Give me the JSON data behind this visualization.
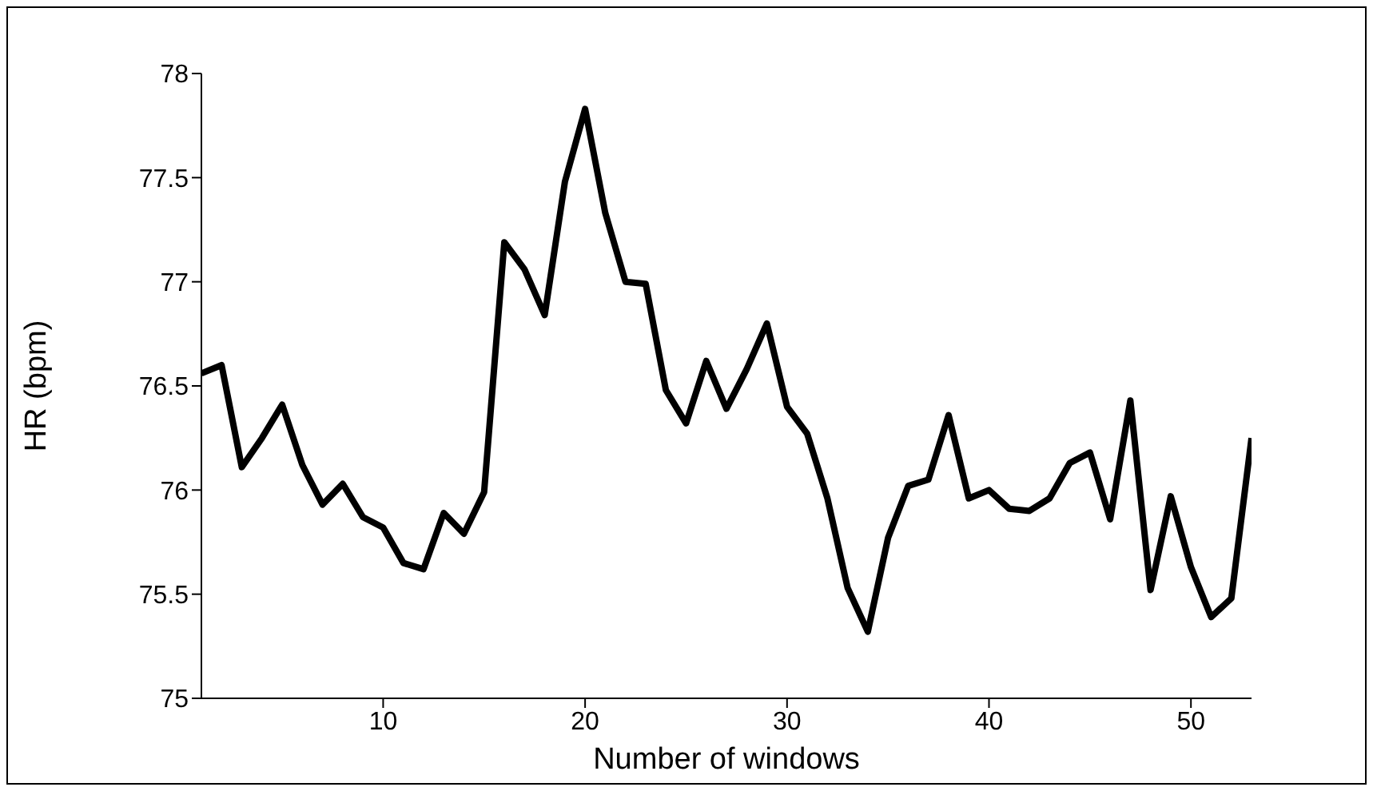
{
  "chart_data": {
    "type": "line",
    "xlabel": "Number of windows",
    "ylabel": "HR (bpm)",
    "x": [
      1,
      2,
      3,
      4,
      5,
      6,
      7,
      8,
      9,
      10,
      11,
      12,
      13,
      14,
      15,
      16,
      17,
      18,
      19,
      20,
      21,
      22,
      23,
      24,
      25,
      26,
      27,
      28,
      29,
      30,
      31,
      32,
      33,
      34,
      35,
      36,
      37,
      38,
      39,
      40,
      41,
      42,
      43,
      44,
      45,
      46,
      47,
      48,
      49,
      50,
      51,
      52,
      53
    ],
    "series": [
      {
        "color": "#000000",
        "values": [
          76.56,
          76.6,
          76.11,
          76.25,
          76.41,
          76.12,
          75.93,
          76.03,
          75.87,
          75.82,
          75.65,
          75.62,
          75.89,
          75.79,
          75.99,
          77.19,
          77.06,
          76.84,
          77.48,
          77.83,
          77.33,
          77.0,
          76.99,
          76.48,
          76.32,
          76.62,
          76.39,
          76.58,
          76.8,
          76.4,
          76.27,
          75.96,
          75.53,
          75.32,
          75.77,
          76.02,
          76.05,
          76.36,
          75.96,
          76.0,
          75.91,
          75.9,
          75.96,
          76.13,
          76.18,
          75.86,
          76.43,
          75.52,
          75.97,
          75.63,
          75.39,
          75.48,
          76.25
        ]
      }
    ],
    "xlim": [
      1,
      53
    ],
    "xticks": [
      10,
      20,
      30,
      40,
      50
    ],
    "ylim": [
      75,
      78
    ],
    "yticks": [
      75,
      75.5,
      76,
      76.5,
      77,
      77.5,
      78
    ],
    "grid": false,
    "legend": false,
    "marker": "none",
    "line_style": "solid"
  }
}
